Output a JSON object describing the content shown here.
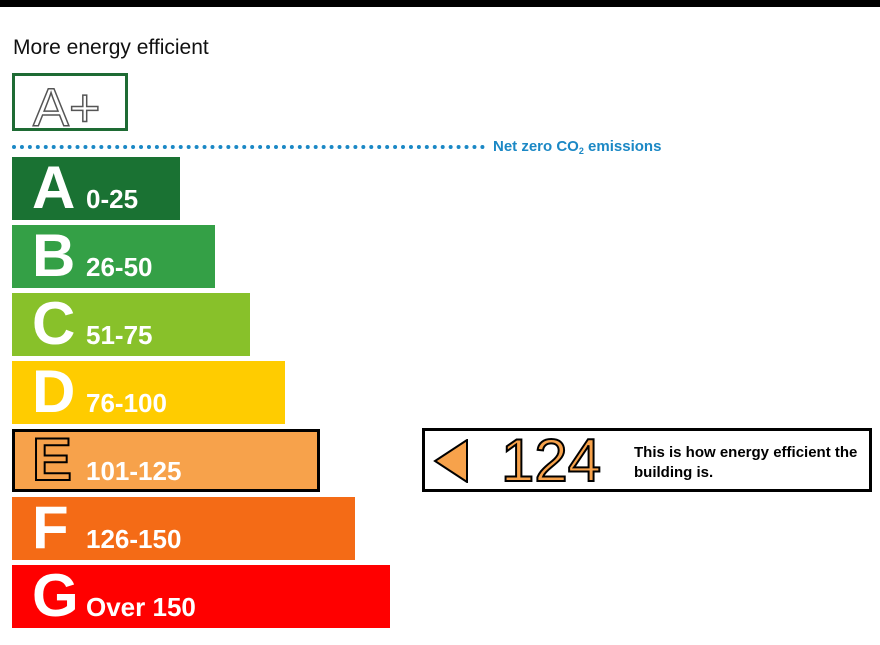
{
  "header": {
    "more_label": "More energy efficient",
    "aplus_label": "A+"
  },
  "net_zero": {
    "prefix": "Net zero CO",
    "subscript": "2",
    "suffix": " emissions"
  },
  "colors": {
    "A": "#1a7233",
    "B": "#34a046",
    "C": "#88c12a",
    "D": "#ffcc00",
    "E": "#f7a24b",
    "F": "#f46b16",
    "G": "#ff0000",
    "net_zero": "#1b88c5",
    "aplus_border": "#1e6b34"
  },
  "chart_data": {
    "type": "bar",
    "categories": [
      "A",
      "B",
      "C",
      "D",
      "E",
      "F",
      "G"
    ],
    "ranges": [
      "0-25",
      "26-50",
      "51-75",
      "76-100",
      "101-125",
      "126-150",
      "Over 150"
    ],
    "selected_band": "E",
    "score": 124
  },
  "indicator": {
    "score": "124",
    "text": "This is how energy efficient the building is."
  }
}
